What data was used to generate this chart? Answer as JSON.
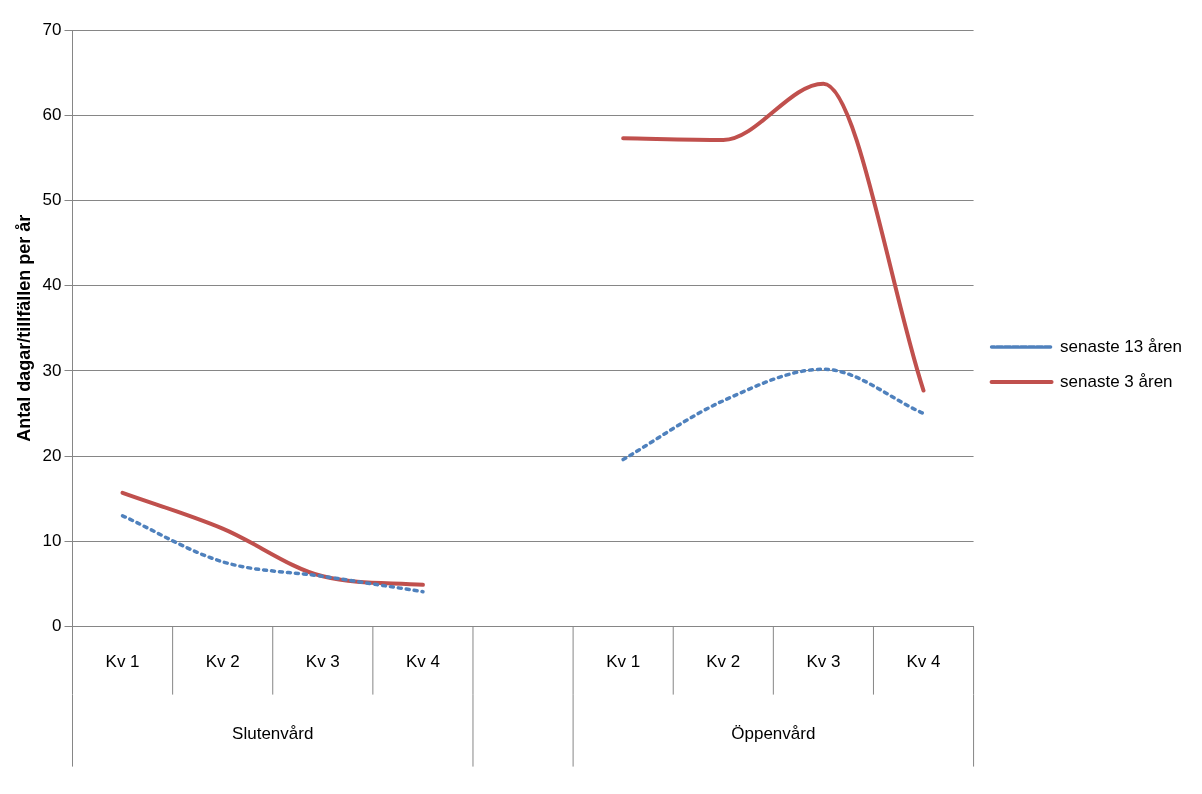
{
  "chart_data": {
    "type": "line",
    "ylabel": "Antal dagar/tillfällen per år",
    "categories": [
      "Kv 1",
      "Kv 2",
      "Kv 3",
      "Kv 4",
      null,
      "Kv 1",
      "Kv 2",
      "Kv 3",
      "Kv 4"
    ],
    "series": [
      {
        "name": "senaste 13 åren",
        "color": "#4f81bd",
        "line_style": "dotted",
        "values": [
          13,
          7.6,
          5.9,
          4.1,
          null,
          19.6,
          26.5,
          30.2,
          25
        ]
      },
      {
        "name": "senaste 3 åren",
        "color": "#c0504d",
        "line_style": "solid",
        "values": [
          15.7,
          11.5,
          5.9,
          4.9,
          null,
          57.3,
          57.1,
          63.7,
          27.7
        ]
      }
    ],
    "ylim": [
      0,
      70
    ],
    "yticks": [
      0,
      10,
      20,
      30,
      40,
      50,
      60,
      70
    ],
    "grid": "y",
    "legend": "right",
    "marker": "none",
    "annotations": [
      "Slutenvård",
      "Öppenvård"
    ]
  }
}
